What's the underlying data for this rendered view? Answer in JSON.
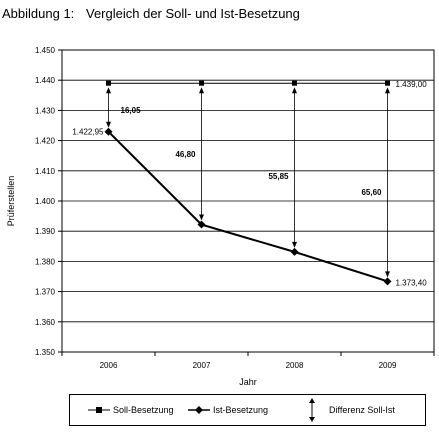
{
  "figure": {
    "number": "Abbildung 1:",
    "title": "Vergleich der Soll- und Ist-Besetzung"
  },
  "chart_data": {
    "type": "line",
    "categories": [
      "2006",
      "2007",
      "2008",
      "2009"
    ],
    "xlabel": "Jahr",
    "ylabel": "Prüferstellen",
    "ylim": [
      1350,
      1450
    ],
    "yticks": [
      1350,
      1360,
      1370,
      1380,
      1390,
      1400,
      1410,
      1420,
      1430,
      1440,
      1450
    ],
    "ytick_labels": [
      "1.350",
      "1.360",
      "1.370",
      "1.380",
      "1.390",
      "1.400",
      "1.410",
      "1.420",
      "1.430",
      "1.440",
      "1.450"
    ],
    "grid": true,
    "legend_position": "bottom",
    "series": [
      {
        "name": "Soll-Besetzung",
        "values": [
          1439.0,
          1439.0,
          1439.0,
          1439.0
        ],
        "marker": "square",
        "color": "#000000"
      },
      {
        "name": "Ist-Besetzung",
        "values": [
          1422.95,
          1392.2,
          1383.15,
          1373.4
        ],
        "marker": "diamond",
        "color": "#000000"
      }
    ],
    "point_labels": [
      {
        "text": "1.422,95",
        "category": "2006",
        "value": 1422.95
      },
      {
        "text": "1.439,00",
        "category": "2009",
        "value": 1439.0
      },
      {
        "text": "1.373,40",
        "category": "2009",
        "value": 1373.4
      }
    ],
    "differences": [
      {
        "category": "2006",
        "text": "16,05"
      },
      {
        "category": "2007",
        "text": "46,80"
      },
      {
        "category": "2008",
        "text": "55,85"
      },
      {
        "category": "2009",
        "text": "65,60"
      }
    ],
    "difference_label": "Differenz Soll-Ist"
  }
}
